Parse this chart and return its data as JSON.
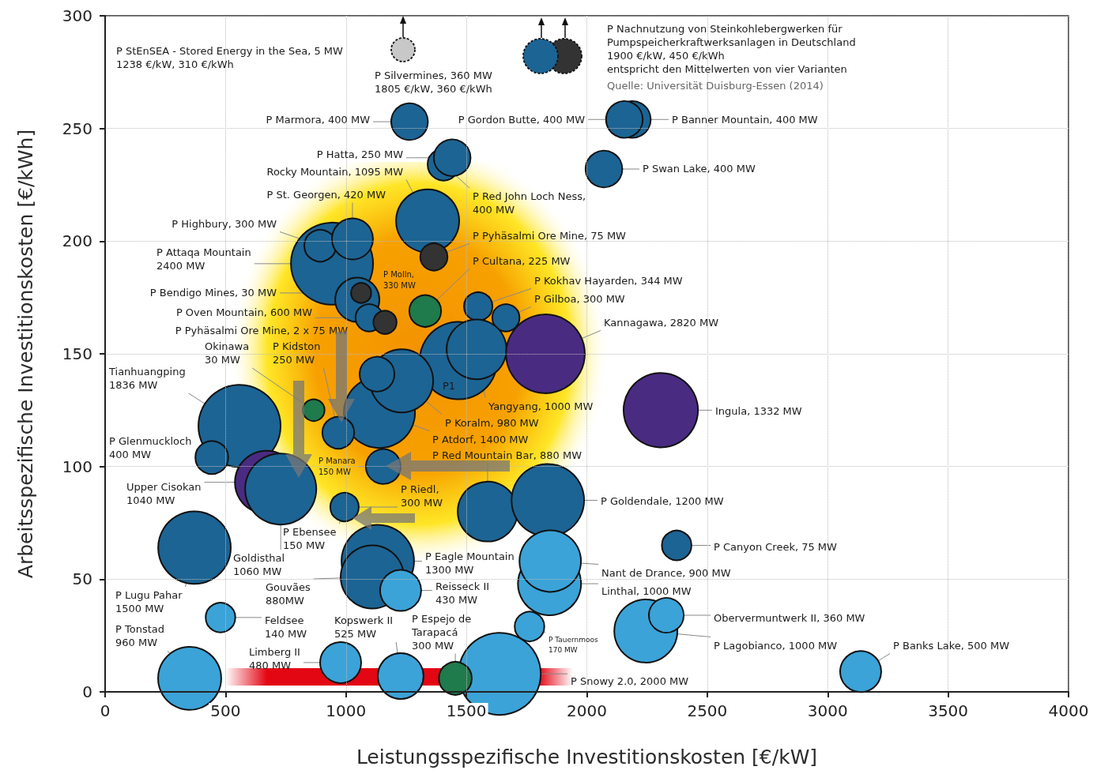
{
  "chart_data": {
    "type": "bubble",
    "xlabel": "Leistungsspezifische Investitionskosten [€/kW]",
    "ylabel": "Arbeitsspezifische Investitionskosten [€/kWh]",
    "xlim": [
      0,
      4000
    ],
    "xticks": [
      0,
      500,
      1000,
      1500,
      2000,
      2500,
      3000,
      3500,
      4000
    ],
    "ylim": [
      0,
      300
    ],
    "yticks": [
      0,
      50,
      100,
      150,
      200,
      250,
      300
    ],
    "grid": true,
    "marker": "circle",
    "series": [
      {
        "x": [
          2189,
          2156,
          1264,
          1405,
          1441,
          2071,
          1339,
          1365,
          942,
          893,
          1027,
          1047,
          1063,
          1096,
          1162,
          1329,
          1549,
          1664,
          1467,
          1542,
          1828,
          1139,
          1231,
          1129,
          866,
          968,
          558,
          443,
          670,
          729,
          1155,
          994,
          2307,
          1588,
          1838,
          371,
          1132,
          1109,
          1227,
          2373,
          1845,
          1848,
          479,
          351,
          978,
          1227,
          1638,
          1454,
          1762,
          2245,
          2330,
          3137
        ],
        "values": [
          254,
          254,
          253,
          234,
          237,
          232,
          209,
          193,
          190,
          198,
          201,
          174,
          177,
          166,
          164,
          169,
          171,
          166,
          147,
          152,
          150,
          124,
          138,
          141,
          125,
          115,
          118,
          104,
          93,
          90,
          100,
          82,
          125,
          80,
          85,
          64,
          58,
          51,
          45,
          65,
          48,
          58,
          33,
          6,
          13,
          7,
          8,
          6,
          29,
          27,
          34,
          9
        ],
        "sizes": [
          0.2,
          0.2,
          0.2,
          0.15,
          0.2,
          0.2,
          0.59,
          0.11,
          1,
          0.15,
          0.25,
          0.29,
          0.06,
          0.11,
          0.08,
          0.15,
          0.12,
          0.11,
          0.89,
          0.53,
          0.92,
          0.75,
          0.59,
          0.18,
          0.07,
          0.15,
          1,
          0.16,
          0.59,
          0.75,
          0.18,
          0.12,
          0.82,
          0.53,
          0.78,
          0.78,
          0.78,
          0.59,
          0.25,
          0.13,
          0.59,
          0.56,
          0.13,
          0.59,
          0.25,
          0.31,
          1,
          0.16,
          0.13,
          0.59,
          0.18,
          0.25
        ],
        "colors": [
          "#1c6494",
          "#1c6494",
          "#1c6494",
          "#1c6494",
          "#1c6494",
          "#1c6494",
          "#1c6494",
          "#333333",
          "#1c6494",
          "#1c6494",
          "#1c6494",
          "#1c6494",
          "#333333",
          "#1c6494",
          "#333333",
          "#1f7a4c",
          "#1c6494",
          "#1c6494",
          "#1c6494",
          "#1c6494",
          "#4a2b82",
          "#1c6494",
          "#1c6494",
          "#1c6494",
          "#1f7a4c",
          "#1c6494",
          "#1c6494",
          "#1c6494",
          "#4a2b82",
          "#1c6494",
          "#1c6494",
          "#1c6494",
          "#4a2b82",
          "#1c6494",
          "#1c6494",
          "#1c6494",
          "#1c6494",
          "#1c6494",
          "#3ba3d8",
          "#1c6494",
          "#3ba3d8",
          "#3ba3d8",
          "#3ba3d8",
          "#3ba3d8",
          "#3ba3d8",
          "#3ba3d8",
          "#3ba3d8",
          "#1f7a4c",
          "#3ba3d8",
          "#3ba3d8",
          "#3ba3d8",
          "#3ba3d8"
        ]
      }
    ],
    "annotations": [
      "P StEnSEA - Stored Energy in the Sea, 5 MW\n1238 €/kW, 310 €/kWh",
      "P Silvermines, 360 MW\n1805 €/kW, 360 €/kWh",
      "P Nachnutzung von Steinkohlebergwerken für\nPumpspeicherkraftwerksanlagen in Deutschland\n1900 €/kW, 450 €/kWh\nentspricht den Mittelwerten von vier Varianten",
      "Quelle: Universität Duisburg-Essen (2014)",
      {
        "text": "P Marmora, 400 MW",
        "x": 1264,
        "y": 253
      },
      {
        "text": "P Gordon Butte, 400 MW",
        "x": 2156,
        "y": 254
      },
      {
        "text": "P Banner Mountain, 400 MW",
        "x": 2189,
        "y": 254
      },
      {
        "text": "P Hatta, 250 MW",
        "x": 1441,
        "y": 237
      },
      {
        "text": "P Red John Loch Ness,\n400 MW",
        "x": 1405,
        "y": 234
      },
      {
        "text": "P Swan Lake, 400 MW",
        "x": 2071,
        "y": 232
      },
      {
        "text": "Rocky Mountain, 1095 MW",
        "x": 1339,
        "y": 209
      },
      {
        "text": "P St. Georgen, 420 MW",
        "x": 1027,
        "y": 201
      },
      {
        "text": "P Highbury, 300 MW",
        "x": 893,
        "y": 198
      },
      {
        "text": "P Attaqa Mountain\n2400 MW",
        "x": 942,
        "y": 190
      },
      {
        "text": "P Pyhäsalmi Ore Mine, 75 MW",
        "x": 1365,
        "y": 193
      },
      {
        "text": "P Molln,\n330 MW",
        "x": 1047,
        "y": 174
      },
      {
        "text": "P Cultana, 225 MW",
        "x": 1329,
        "y": 169
      },
      {
        "text": "P Kokhav Hayarden, 344 MW",
        "x": 1549,
        "y": 171
      },
      {
        "text": "P Gilboa, 300 MW",
        "x": 1664,
        "y": 166
      },
      {
        "text": "P Bendigo Mines, 30 MW",
        "x": 1063,
        "y": 177
      },
      {
        "text": "P Oven Mountain, 600 MW",
        "x": 1096,
        "y": 166
      },
      {
        "text": "P Pyhäsalmi Ore Mine, 2 x 75 MW",
        "x": 1162,
        "y": 164
      },
      {
        "text": "Kannagawa, 2820 MW",
        "x": 1828,
        "y": 150
      },
      {
        "text": "Okinawa\n30 MW",
        "x": 866,
        "y": 125
      },
      {
        "text": "P Kidston\n250 MW",
        "x": 968,
        "y": 115
      },
      {
        "text": "Tianhuangping\n1836 MW",
        "x": 558,
        "y": 118
      },
      {
        "text": "P1",
        "x": 1467,
        "y": 147
      },
      {
        "text": "Yangyang, 1000 MW",
        "x": 1542,
        "y": 152
      },
      {
        "text": "P Koralm, 980 MW",
        "x": 1231,
        "y": 138
      },
      {
        "text": "P Atdorf, 1400 MW",
        "x": 1139,
        "y": 124
      },
      {
        "text": "P Red Mountain Bar, 880 MW",
        "x": 1588,
        "y": 80
      },
      {
        "text": "Ingula, 1332 MW",
        "x": 2307,
        "y": 125
      },
      {
        "text": "P Glenmuckloch\n400 MW",
        "x": 443,
        "y": 104
      },
      {
        "text": "P Manara\n150 MW",
        "x": 1155,
        "y": 100
      },
      {
        "text": "Upper Cisokan\n1040 MW",
        "x": 670,
        "y": 93
      },
      {
        "text": "P Riedl,\n300 MW",
        "x": 994,
        "y": 82
      },
      {
        "text": "P Goldendale, 1200 MW",
        "x": 1838,
        "y": 85
      },
      {
        "text": "P Ebensee\n150 MW",
        "x": 994,
        "y": 82
      },
      {
        "text": "Goldisthal\n1060 MW",
        "x": 729,
        "y": 90
      },
      {
        "text": "P Canyon Creek, 75 MW",
        "x": 2373,
        "y": 65
      },
      {
        "text": "P Eagle Mountain\n1300 MW",
        "x": 1132,
        "y": 58
      },
      {
        "text": "Nant de Drance, 900 MW",
        "x": 1848,
        "y": 58
      },
      {
        "text": "Gouvães\n880MW",
        "x": 1109,
        "y": 51
      },
      {
        "text": "Linthal, 1000 MW",
        "x": 1845,
        "y": 48
      },
      {
        "text": "P Lugu Pahar\n1500 MW",
        "x": 371,
        "y": 64
      },
      {
        "text": "Reisseck II\n430 MW",
        "x": 1227,
        "y": 45
      },
      {
        "text": "Obervermuntwerk II, 360 MW",
        "x": 2330,
        "y": 34
      },
      {
        "text": "Feldsee\n140 MW",
        "x": 479,
        "y": 33
      },
      {
        "text": "Kopswerk II\n525 MW",
        "x": 1227,
        "y": 7
      },
      {
        "text": "P Espejo de\nTarapacá\n300 MW",
        "x": 1454,
        "y": 6
      },
      {
        "text": "P Tauernmoos\n170 MW",
        "x": 1762,
        "y": 29
      },
      {
        "text": "P Tonstad\n960 MW",
        "x": 351,
        "y": 6
      },
      {
        "text": "P Lagobianco, 1000 MW",
        "x": 2245,
        "y": 27
      },
      {
        "text": "P Banks Lake, 500 MW",
        "x": 3137,
        "y": 9
      },
      {
        "text": "Limberg II\n480 MW",
        "x": 978,
        "y": 13
      },
      {
        "text": "P Snowy 2.0, 2000 MW",
        "x": 1638,
        "y": 8
      }
    ]
  }
}
